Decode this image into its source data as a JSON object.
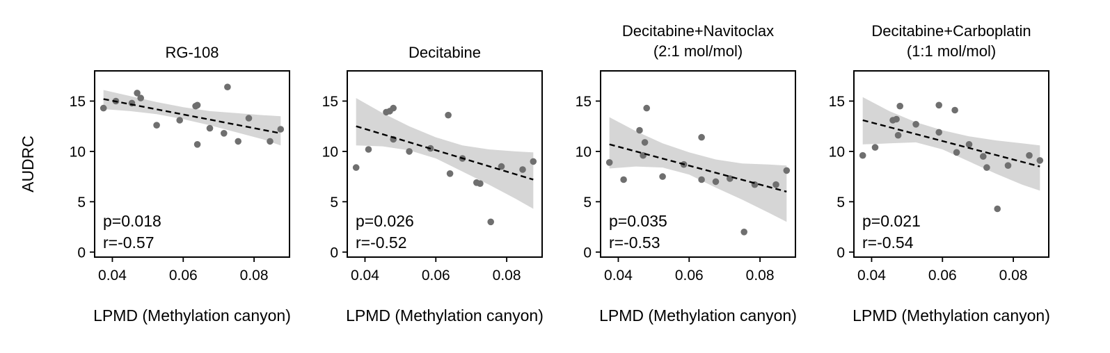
{
  "figure": {
    "ylabel": "AUDRC"
  },
  "chart_data": [
    {
      "type": "scatter",
      "title": "RG-108",
      "xlabel": "LPMD (Methylation canyon)",
      "ylabel": "AUDRC",
      "xlim": [
        0.035,
        0.09
      ],
      "ylim": [
        -0.5,
        18
      ],
      "xticks": [
        0.04,
        0.06,
        0.08
      ],
      "xtick_labels": [
        "0.04",
        "0.06",
        "0.08"
      ],
      "yticks": [
        0,
        5,
        10,
        15
      ],
      "ytick_labels": [
        "0",
        "5",
        "10",
        "15"
      ],
      "grid": false,
      "annotations": [
        "p=0.018",
        "r=-0.57"
      ],
      "points": [
        {
          "x": 0.0375,
          "y": 14.3
        },
        {
          "x": 0.041,
          "y": 15.0
        },
        {
          "x": 0.0455,
          "y": 14.8
        },
        {
          "x": 0.047,
          "y": 15.8
        },
        {
          "x": 0.048,
          "y": 15.3
        },
        {
          "x": 0.0525,
          "y": 12.6
        },
        {
          "x": 0.059,
          "y": 13.1
        },
        {
          "x": 0.0635,
          "y": 14.5
        },
        {
          "x": 0.064,
          "y": 14.6
        },
        {
          "x": 0.064,
          "y": 10.7
        },
        {
          "x": 0.0675,
          "y": 12.3
        },
        {
          "x": 0.0715,
          "y": 11.8
        },
        {
          "x": 0.0725,
          "y": 16.4
        },
        {
          "x": 0.0755,
          "y": 11.0
        },
        {
          "x": 0.0785,
          "y": 13.3
        },
        {
          "x": 0.0845,
          "y": 11.0
        },
        {
          "x": 0.0875,
          "y": 12.2
        }
      ],
      "fit": {
        "x": [
          0.0375,
          0.0875
        ],
        "y": [
          15.2,
          11.8
        ]
      },
      "band": {
        "x": [
          0.0375,
          0.045,
          0.0525,
          0.06,
          0.0675,
          0.075,
          0.0825,
          0.0875
        ],
        "upper": [
          16.1,
          15.5,
          14.9,
          14.4,
          14.0,
          13.8,
          13.6,
          13.5
        ],
        "lower": [
          14.2,
          14.0,
          13.7,
          13.2,
          12.6,
          11.9,
          11.2,
          10.6
        ]
      }
    },
    {
      "type": "scatter",
      "title": "Decitabine",
      "xlabel": "LPMD (Methylation canyon)",
      "ylabel": "",
      "xlim": [
        0.035,
        0.09
      ],
      "ylim": [
        -0.5,
        18
      ],
      "xticks": [
        0.04,
        0.06,
        0.08
      ],
      "xtick_labels": [
        "0.04",
        "0.06",
        "0.08"
      ],
      "yticks": [
        0,
        5,
        10,
        15
      ],
      "ytick_labels": [
        "0",
        "5",
        "10",
        "15"
      ],
      "grid": false,
      "annotations": [
        "p=0.026",
        "r=-0.52"
      ],
      "points": [
        {
          "x": 0.0375,
          "y": 8.4
        },
        {
          "x": 0.041,
          "y": 10.2
        },
        {
          "x": 0.046,
          "y": 13.9
        },
        {
          "x": 0.047,
          "y": 14.0
        },
        {
          "x": 0.048,
          "y": 14.3
        },
        {
          "x": 0.048,
          "y": 11.2
        },
        {
          "x": 0.0525,
          "y": 10.0
        },
        {
          "x": 0.0585,
          "y": 10.3
        },
        {
          "x": 0.0635,
          "y": 13.6
        },
        {
          "x": 0.064,
          "y": 7.8
        },
        {
          "x": 0.0675,
          "y": 9.3
        },
        {
          "x": 0.0715,
          "y": 6.9
        },
        {
          "x": 0.0725,
          "y": 6.8
        },
        {
          "x": 0.0755,
          "y": 3.0
        },
        {
          "x": 0.0785,
          "y": 8.5
        },
        {
          "x": 0.0845,
          "y": 8.2
        },
        {
          "x": 0.0875,
          "y": 9.0
        }
      ],
      "fit": {
        "x": [
          0.0375,
          0.0875
        ],
        "y": [
          12.5,
          7.2
        ]
      },
      "band": {
        "x": [
          0.0375,
          0.045,
          0.0525,
          0.06,
          0.0675,
          0.075,
          0.0825,
          0.0875
        ],
        "upper": [
          15.3,
          13.8,
          12.5,
          11.4,
          10.6,
          10.2,
          10.0,
          9.9
        ],
        "lower": [
          10.6,
          10.5,
          10.1,
          9.3,
          8.0,
          6.7,
          5.3,
          4.3
        ]
      }
    },
    {
      "type": "scatter",
      "title": "Decitabine+Navitoclax\n(2:1 mol/mol)",
      "xlabel": "LPMD (Methylation canyon)",
      "ylabel": "",
      "xlim": [
        0.035,
        0.09
      ],
      "ylim": [
        -0.5,
        18
      ],
      "xticks": [
        0.04,
        0.06,
        0.08
      ],
      "xtick_labels": [
        "0.04",
        "0.06",
        "0.08"
      ],
      "yticks": [
        0,
        5,
        10,
        15
      ],
      "ytick_labels": [
        "0",
        "5",
        "10",
        "15"
      ],
      "grid": false,
      "annotations": [
        "p=0.035",
        "r=-0.53"
      ],
      "points": [
        {
          "x": 0.0375,
          "y": 8.9
        },
        {
          "x": 0.0415,
          "y": 7.2
        },
        {
          "x": 0.046,
          "y": 12.1
        },
        {
          "x": 0.047,
          "y": 9.6
        },
        {
          "x": 0.0475,
          "y": 10.9
        },
        {
          "x": 0.048,
          "y": 14.3
        },
        {
          "x": 0.0525,
          "y": 7.5
        },
        {
          "x": 0.0585,
          "y": 8.7
        },
        {
          "x": 0.0635,
          "y": 11.4
        },
        {
          "x": 0.0635,
          "y": 7.2
        },
        {
          "x": 0.0675,
          "y": 7.0
        },
        {
          "x": 0.0715,
          "y": 7.3
        },
        {
          "x": 0.0755,
          "y": 2.0
        },
        {
          "x": 0.0785,
          "y": 6.7
        },
        {
          "x": 0.0845,
          "y": 6.7
        },
        {
          "x": 0.0875,
          "y": 8.1
        }
      ],
      "fit": {
        "x": [
          0.0375,
          0.0875
        ],
        "y": [
          10.7,
          6.0
        ]
      },
      "band": {
        "x": [
          0.0375,
          0.045,
          0.0525,
          0.06,
          0.0675,
          0.075,
          0.0825,
          0.0875
        ],
        "upper": [
          13.4,
          12.0,
          10.8,
          9.9,
          9.2,
          8.8,
          8.7,
          8.6
        ],
        "lower": [
          8.3,
          8.5,
          8.4,
          7.7,
          6.4,
          5.2,
          3.9,
          3.0
        ]
      }
    },
    {
      "type": "scatter",
      "title": "Decitabine+Carboplatin\n(1:1 mol/mol)",
      "xlabel": "LPMD (Methylation canyon)",
      "ylabel": "",
      "xlim": [
        0.035,
        0.09
      ],
      "ylim": [
        -0.5,
        18
      ],
      "xticks": [
        0.04,
        0.06,
        0.08
      ],
      "xtick_labels": [
        "0.04",
        "0.06",
        "0.08"
      ],
      "yticks": [
        0,
        5,
        10,
        15
      ],
      "ytick_labels": [
        "0",
        "5",
        "10",
        "15"
      ],
      "grid": false,
      "annotations": [
        "p=0.021",
        "r=-0.54"
      ],
      "points": [
        {
          "x": 0.0375,
          "y": 9.6
        },
        {
          "x": 0.041,
          "y": 10.4
        },
        {
          "x": 0.046,
          "y": 13.1
        },
        {
          "x": 0.047,
          "y": 13.2
        },
        {
          "x": 0.0475,
          "y": 11.6
        },
        {
          "x": 0.048,
          "y": 14.5
        },
        {
          "x": 0.0525,
          "y": 12.7
        },
        {
          "x": 0.059,
          "y": 14.6
        },
        {
          "x": 0.059,
          "y": 11.9
        },
        {
          "x": 0.0635,
          "y": 14.1
        },
        {
          "x": 0.064,
          "y": 9.9
        },
        {
          "x": 0.0675,
          "y": 10.7
        },
        {
          "x": 0.0715,
          "y": 9.5
        },
        {
          "x": 0.0725,
          "y": 8.4
        },
        {
          "x": 0.0755,
          "y": 4.3
        },
        {
          "x": 0.0785,
          "y": 8.6
        },
        {
          "x": 0.0845,
          "y": 9.6
        },
        {
          "x": 0.0875,
          "y": 9.1
        }
      ],
      "fit": {
        "x": [
          0.0375,
          0.0875
        ],
        "y": [
          13.1,
          8.5
        ]
      },
      "band": {
        "x": [
          0.0375,
          0.045,
          0.0525,
          0.06,
          0.0675,
          0.075,
          0.0825,
          0.0875
        ],
        "upper": [
          15.4,
          14.0,
          12.9,
          12.1,
          11.5,
          11.1,
          10.8,
          10.6
        ],
        "lower": [
          10.7,
          10.8,
          10.9,
          10.2,
          9.0,
          7.8,
          6.7,
          6.1
        ]
      }
    }
  ]
}
